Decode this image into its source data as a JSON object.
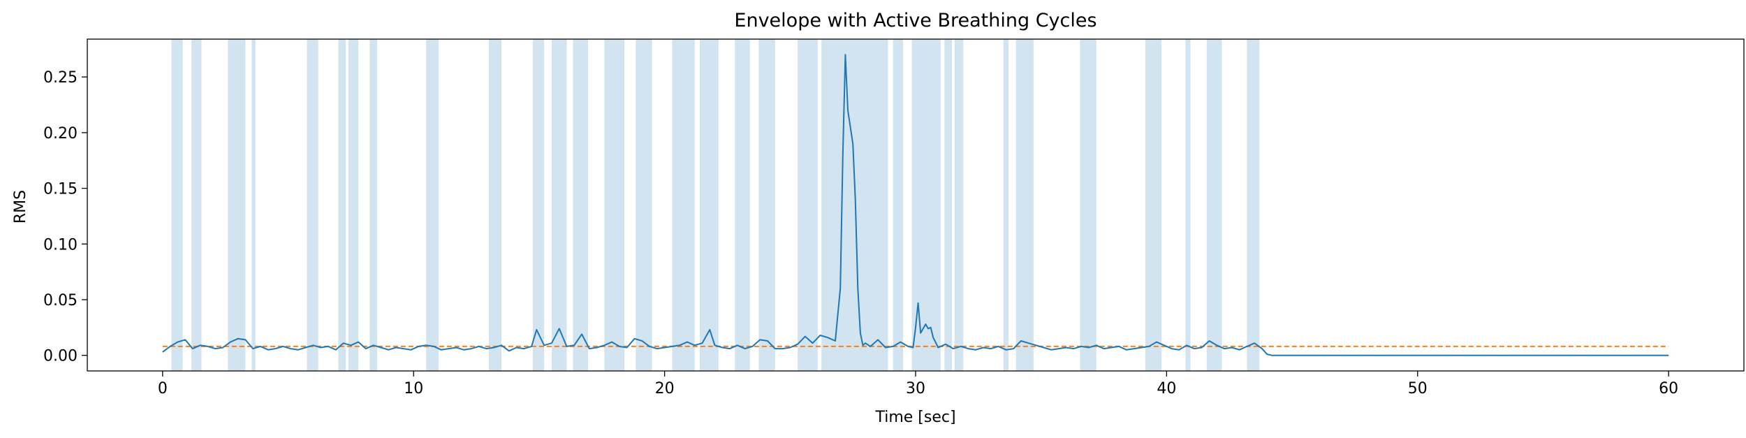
{
  "chart_data": {
    "type": "line",
    "title": "Envelope with Active Breathing Cycles",
    "xlabel": "Time [sec]",
    "ylabel": "RMS",
    "xlim": [
      -3,
      63
    ],
    "ylim": [
      -0.014,
      0.284
    ],
    "x_ticks": [
      0,
      10,
      20,
      30,
      40,
      50,
      60
    ],
    "y_ticks": [
      0.0,
      0.05,
      0.1,
      0.15,
      0.2,
      0.25
    ],
    "y_tick_labels": [
      "0.00",
      "0.05",
      "0.10",
      "0.15",
      "0.20",
      "0.25"
    ],
    "grid": false,
    "colors": {
      "envelope": "#1f77b4",
      "threshold": "#ff7f0e",
      "active_cycle": "#1f77b4"
    },
    "threshold": {
      "value": 0.008,
      "x_range": [
        0,
        60
      ],
      "style": "dashed"
    },
    "active_cycles": [
      [
        0.35,
        0.8
      ],
      [
        1.15,
        1.55
      ],
      [
        2.6,
        3.3
      ],
      [
        3.55,
        3.7
      ],
      [
        5.75,
        6.2
      ],
      [
        7.0,
        7.3
      ],
      [
        7.4,
        7.8
      ],
      [
        8.25,
        8.55
      ],
      [
        10.5,
        11.0
      ],
      [
        13.0,
        13.5
      ],
      [
        14.75,
        15.2
      ],
      [
        15.5,
        16.1
      ],
      [
        16.35,
        16.95
      ],
      [
        17.6,
        18.4
      ],
      [
        18.85,
        19.5
      ],
      [
        20.3,
        20.5
      ],
      [
        20.5,
        21.2
      ],
      [
        21.4,
        22.15
      ],
      [
        22.8,
        23.4
      ],
      [
        23.75,
        24.4
      ],
      [
        25.3,
        26.1
      ],
      [
        26.25,
        28.9
      ],
      [
        29.1,
        29.5
      ],
      [
        29.85,
        31.0
      ],
      [
        31.15,
        31.45
      ],
      [
        31.55,
        31.9
      ],
      [
        33.5,
        33.7
      ],
      [
        34.0,
        34.7
      ],
      [
        36.55,
        37.2
      ],
      [
        39.15,
        39.8
      ],
      [
        40.75,
        40.95
      ],
      [
        41.6,
        42.2
      ],
      [
        43.2,
        43.7
      ]
    ],
    "series": [
      {
        "type": "line",
        "x": [
          0,
          0.3,
          0.6,
          0.9,
          1.2,
          1.5,
          1.8,
          2.1,
          2.4,
          2.7,
          3.0,
          3.3,
          3.6,
          3.9,
          4.2,
          4.5,
          4.8,
          5.1,
          5.4,
          5.7,
          6.0,
          6.3,
          6.6,
          6.9,
          7.2,
          7.5,
          7.8,
          8.1,
          8.4,
          8.7,
          9.0,
          9.3,
          9.6,
          9.9,
          10.2,
          10.5,
          10.8,
          11.1,
          11.4,
          11.7,
          12.0,
          12.3,
          12.6,
          12.9,
          13.2,
          13.5,
          13.8,
          14.1,
          14.4,
          14.7,
          14.9,
          15.2,
          15.5,
          15.8,
          16.1,
          16.4,
          16.7,
          17.0,
          17.3,
          17.6,
          17.9,
          18.2,
          18.5,
          18.8,
          19.1,
          19.4,
          19.7,
          20.0,
          20.3,
          20.6,
          20.9,
          21.2,
          21.5,
          21.8,
          22.0,
          22.3,
          22.6,
          22.9,
          23.2,
          23.5,
          23.8,
          24.1,
          24.4,
          24.7,
          25.0,
          25.3,
          25.6,
          25.9,
          26.2,
          26.5,
          26.8,
          27.0,
          27.1,
          27.2,
          27.3,
          27.4,
          27.5,
          27.6,
          27.7,
          27.8,
          27.9,
          28.0,
          28.2,
          28.5,
          28.8,
          29.1,
          29.4,
          29.7,
          29.9,
          30.0,
          30.1,
          30.2,
          30.4,
          30.5,
          30.6,
          30.7,
          30.9,
          31.2,
          31.5,
          31.8,
          32.1,
          32.4,
          32.7,
          33.0,
          33.3,
          33.6,
          33.9,
          34.2,
          34.5,
          34.8,
          35.1,
          35.4,
          35.7,
          36.0,
          36.3,
          36.6,
          36.9,
          37.2,
          37.5,
          37.8,
          38.1,
          38.4,
          38.7,
          39.0,
          39.3,
          39.6,
          39.9,
          40.2,
          40.5,
          40.8,
          41.1,
          41.4,
          41.7,
          42.0,
          42.3,
          42.6,
          42.9,
          43.2,
          43.5,
          43.8,
          44.0,
          44.2,
          50,
          60
        ],
        "y": [
          0.003,
          0.008,
          0.012,
          0.014,
          0.006,
          0.009,
          0.008,
          0.006,
          0.007,
          0.012,
          0.015,
          0.014,
          0.006,
          0.008,
          0.005,
          0.006,
          0.008,
          0.006,
          0.005,
          0.007,
          0.009,
          0.007,
          0.008,
          0.005,
          0.011,
          0.009,
          0.012,
          0.006,
          0.009,
          0.007,
          0.005,
          0.007,
          0.006,
          0.005,
          0.008,
          0.009,
          0.008,
          0.005,
          0.006,
          0.007,
          0.005,
          0.006,
          0.008,
          0.006,
          0.007,
          0.009,
          0.004,
          0.007,
          0.006,
          0.008,
          0.023,
          0.009,
          0.011,
          0.024,
          0.008,
          0.009,
          0.019,
          0.006,
          0.007,
          0.009,
          0.012,
          0.008,
          0.007,
          0.015,
          0.013,
          0.008,
          0.006,
          0.007,
          0.008,
          0.009,
          0.012,
          0.009,
          0.011,
          0.023,
          0.009,
          0.007,
          0.006,
          0.009,
          0.006,
          0.008,
          0.014,
          0.013,
          0.006,
          0.006,
          0.007,
          0.01,
          0.017,
          0.011,
          0.018,
          0.016,
          0.013,
          0.06,
          0.18,
          0.27,
          0.22,
          0.205,
          0.19,
          0.14,
          0.06,
          0.02,
          0.009,
          0.011,
          0.008,
          0.014,
          0.007,
          0.008,
          0.012,
          0.008,
          0.007,
          0.025,
          0.047,
          0.02,
          0.028,
          0.024,
          0.025,
          0.016,
          0.007,
          0.01,
          0.006,
          0.008,
          0.006,
          0.005,
          0.007,
          0.006,
          0.008,
          0.005,
          0.006,
          0.013,
          0.011,
          0.009,
          0.007,
          0.005,
          0.006,
          0.007,
          0.006,
          0.008,
          0.007,
          0.009,
          0.006,
          0.007,
          0.008,
          0.005,
          0.006,
          0.007,
          0.008,
          0.012,
          0.009,
          0.006,
          0.005,
          0.009,
          0.006,
          0.007,
          0.013,
          0.009,
          0.006,
          0.007,
          0.005,
          0.008,
          0.011,
          0.006,
          0.001,
          0.0,
          0.0,
          0.0
        ]
      }
    ]
  }
}
